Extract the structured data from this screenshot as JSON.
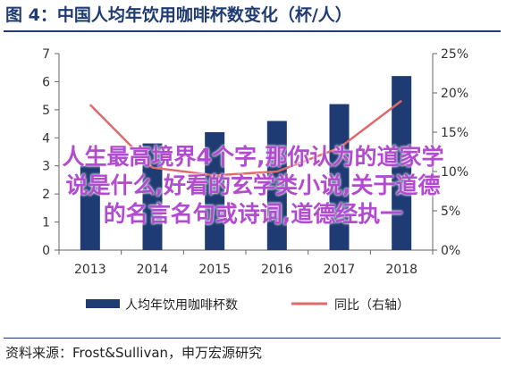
{
  "header": {
    "title": "图 4：中国人均年饮用咖啡杯数变化（杯/人）"
  },
  "source": "资料来源：Frost&Sullivan，申万宏源研究",
  "overlay": {
    "line1": "人生最高境界4个字,那你认为的道家学",
    "line2": "说是什么,好看的玄学类小说,关于道德",
    "line3": "的名言名句或诗词,道德经执一"
  },
  "colors": {
    "bar": "#1f3b73",
    "line": "#e0686a",
    "title": "#1f3b73",
    "overlay": "#b24bd0"
  },
  "chart_data": {
    "type": "bar+line",
    "categories": [
      "2013",
      "2014",
      "2015",
      "2016",
      "2017",
      "2018"
    ],
    "series": [
      {
        "name": "人均年饮用咖啡杯数",
        "type": "bar",
        "axis": "left",
        "values": [
          3.0,
          3.8,
          4.2,
          4.6,
          5.2,
          6.2
        ]
      },
      {
        "name": "同比（右轴）",
        "type": "line",
        "axis": "right",
        "values": [
          18.5,
          10.5,
          9.5,
          10.0,
          13.0,
          19.0
        ]
      }
    ],
    "y_left": {
      "min": 0,
      "max": 7,
      "ticks": [
        "0",
        "1",
        "2",
        "3",
        "4",
        "5",
        "6",
        "7"
      ]
    },
    "y_right": {
      "min": 0,
      "max": 25,
      "ticks": [
        "0%",
        "5%",
        "10%",
        "15%",
        "20%",
        "25%"
      ]
    },
    "grid": false,
    "legend_position": "bottom"
  }
}
